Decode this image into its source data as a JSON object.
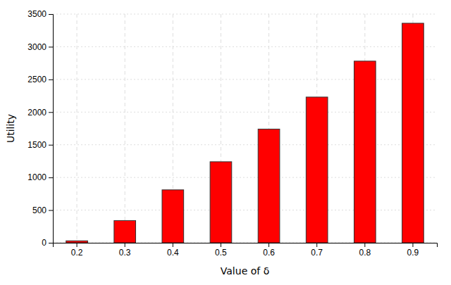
{
  "chart_data": {
    "type": "bar",
    "xlabel": "Value of δ",
    "ylabel": "Utility",
    "categories": [
      "0.2",
      "0.3",
      "0.4",
      "0.5",
      "0.6",
      "0.7",
      "0.8",
      "0.9"
    ],
    "values": [
      30,
      340,
      810,
      1240,
      1740,
      2230,
      2780,
      3360
    ],
    "color": "#FF0000",
    "ylim": [
      0,
      3500
    ],
    "yticks": [
      0,
      500,
      1000,
      1500,
      2000,
      2500,
      3000,
      3500
    ],
    "grid": true
  }
}
